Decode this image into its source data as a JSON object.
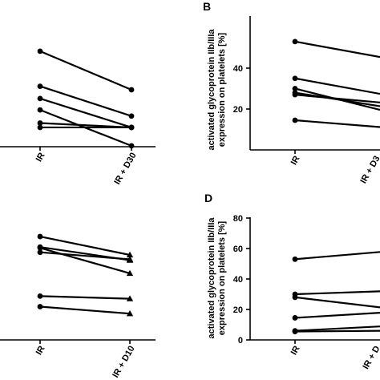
{
  "chart_data": [
    {
      "panel": "",
      "type": "line",
      "categories": [
        "IR",
        "IR + D30"
      ],
      "ylabel": [],
      "ylim": [
        0,
        70
      ],
      "yticks": [],
      "marker": "circle",
      "series": [
        {
          "values": [
            54.5,
            32.5
          ]
        },
        {
          "values": [
            34.5,
            17.5
          ]
        },
        {
          "values": [
            27.5,
            11
          ]
        },
        {
          "values": [
            21,
            0.5
          ]
        },
        {
          "values": [
            13.5,
            11
          ]
        },
        {
          "values": [
            11,
            11
          ]
        }
      ]
    },
    {
      "panel": "B",
      "type": "line",
      "categories": [
        "IR",
        "IR + D3"
      ],
      "ylabel": [
        "activated glycoprotein IIb/IIIa",
        "expression on platelets [%]"
      ],
      "ylim": [
        0,
        60
      ],
      "yticks": [
        "20",
        "40"
      ],
      "marker": "circle",
      "series": [
        {
          "values": [
            53,
            45
          ]
        },
        {
          "values": [
            35,
            27
          ]
        },
        {
          "values": [
            30,
            19
          ]
        },
        {
          "values": [
            28,
            21
          ]
        },
        {
          "values": [
            27,
            23
          ]
        },
        {
          "values": [
            14.5,
            11
          ]
        }
      ]
    },
    {
      "panel": "",
      "type": "line",
      "categories": [
        "IR",
        "IR + D10"
      ],
      "ylabel": [],
      "ylim": [
        0,
        70
      ],
      "yticks": [],
      "marker": "circle/triangle",
      "series": [
        {
          "values": [
            59,
            48.5
          ]
        },
        {
          "values": [
            53,
            45.5
          ]
        },
        {
          "values": [
            52.5,
            38
          ]
        },
        {
          "values": [
            50,
            46
          ]
        },
        {
          "values": [
            25,
            23.5
          ]
        },
        {
          "values": [
            19,
            15
          ]
        }
      ]
    },
    {
      "panel": "D",
      "type": "line",
      "categories": [
        "IR",
        "IR + D"
      ],
      "ylabel": [
        "activated glycoprotein IIb/IIIa",
        "expression on platelets [%]"
      ],
      "ylim": [
        0,
        80
      ],
      "yticks": [
        "0",
        "20",
        "40",
        "60",
        "80"
      ],
      "marker": "circle",
      "series": [
        {
          "values": [
            53,
            58
          ]
        },
        {
          "values": [
            30,
            32
          ]
        },
        {
          "values": [
            28,
            21
          ]
        },
        {
          "values": [
            14.5,
            18
          ]
        },
        {
          "values": [
            6,
            9
          ]
        },
        {
          "values": [
            5.5,
            6
          ]
        }
      ]
    }
  ]
}
